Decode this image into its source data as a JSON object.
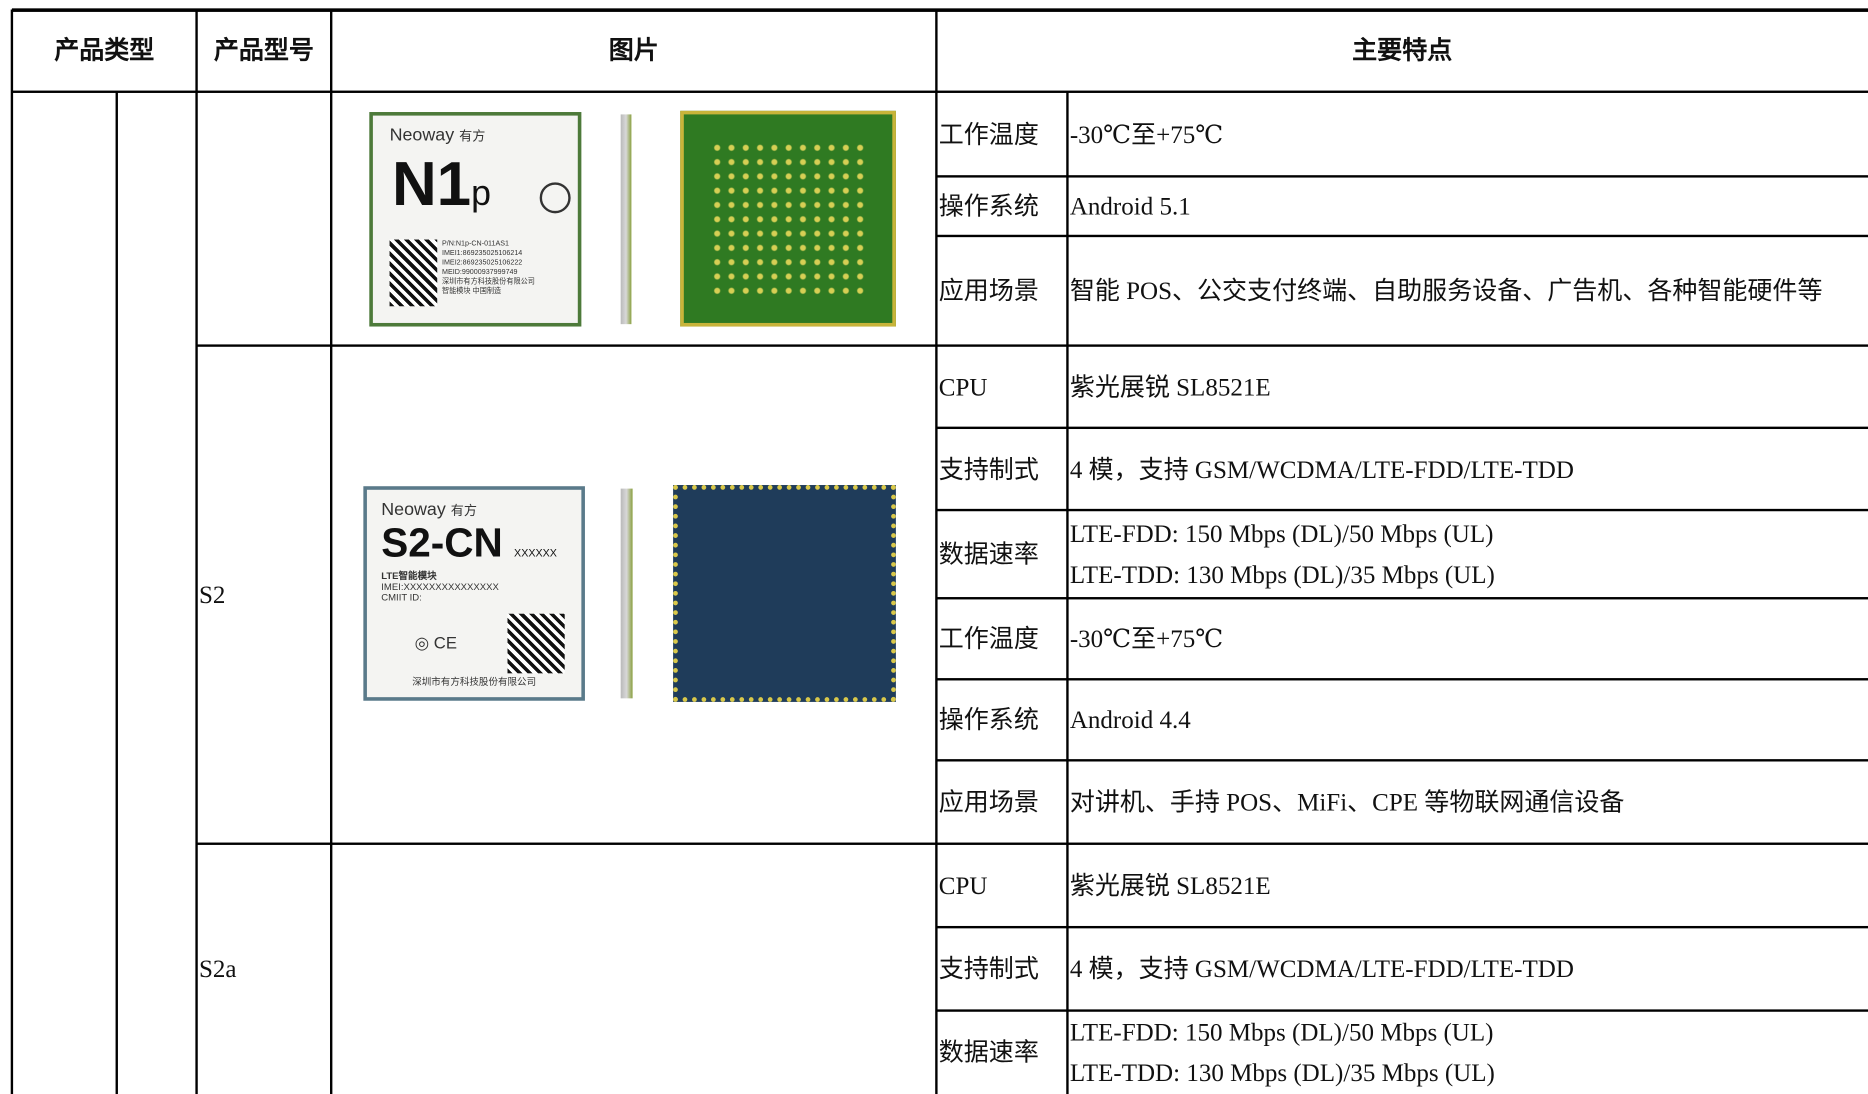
{
  "header": {
    "columns": [
      "产品类型",
      "产品型号",
      "图片",
      "主要特点"
    ]
  },
  "products": [
    {
      "features": [
        {
          "name": "工作温度",
          "value": [
            "-30℃至+75℃"
          ]
        },
        {
          "name": "操作系统",
          "value": [
            "Android 5.1"
          ]
        },
        {
          "name": "应用场景",
          "value": [
            "智能 POS、公交支付终端、自助服务设备、广告机、各种智能硬件等"
          ]
        }
      ]
    },
    {
      "model": "S2",
      "features": [
        {
          "name": "CPU",
          "value": [
            "紫光展锐 SL8521E"
          ]
        },
        {
          "name": "支持制式",
          "value": [
            "4 模，支持 GSM/WCDMA/LTE-FDD/LTE-TDD"
          ]
        },
        {
          "name": "数据速率",
          "value": [
            "LTE-FDD: 150 Mbps (DL)/50 Mbps (UL)",
            "LTE-TDD: 130 Mbps (DL)/35 Mbps (UL)"
          ]
        },
        {
          "name": "工作温度",
          "value": [
            "-30℃至+75℃"
          ]
        },
        {
          "name": "操作系统",
          "value": [
            "Android 4.4"
          ]
        },
        {
          "name": "应用场景",
          "value": [
            "对讲机、手持 POS、MiFi、CPE 等物联网通信设备"
          ]
        }
      ]
    },
    {
      "model": "S2a",
      "features": [
        {
          "name": "CPU",
          "value": [
            "紫光展锐 SL8521E"
          ]
        },
        {
          "name": "支持制式",
          "value": [
            "4 模，支持 GSM/WCDMA/LTE-FDD/LTE-TDD"
          ]
        },
        {
          "name": "数据速率",
          "value": [
            "LTE-FDD: 150 Mbps (DL)/50 Mbps (UL)",
            "LTE-TDD: 130 Mbps (DL)/35 Mbps (UL)"
          ]
        }
      ]
    }
  ],
  "images": {
    "n1p": {
      "brand": "Neoway",
      "brand_cn": "有方",
      "model": "N1",
      "suffix": "p",
      "lines": [
        "P/N:N1p-CN-011AS1",
        "IMEI1:869235025106214",
        "IMEI2:869235025106222",
        "MEID:99000937999749",
        "深圳市有方科技股份有限公司",
        "智能模块 中国制造"
      ]
    },
    "s2": {
      "brand": "Neoway",
      "brand_cn": "有方",
      "model": "S2-CN",
      "suffix": "XXXXXX",
      "lines": [
        "LTE智能模块",
        "IMEI:XXXXXXXXXXXXXXX",
        "CMIIT ID:",
        "深圳市有方科技股份有限公司"
      ]
    }
  }
}
